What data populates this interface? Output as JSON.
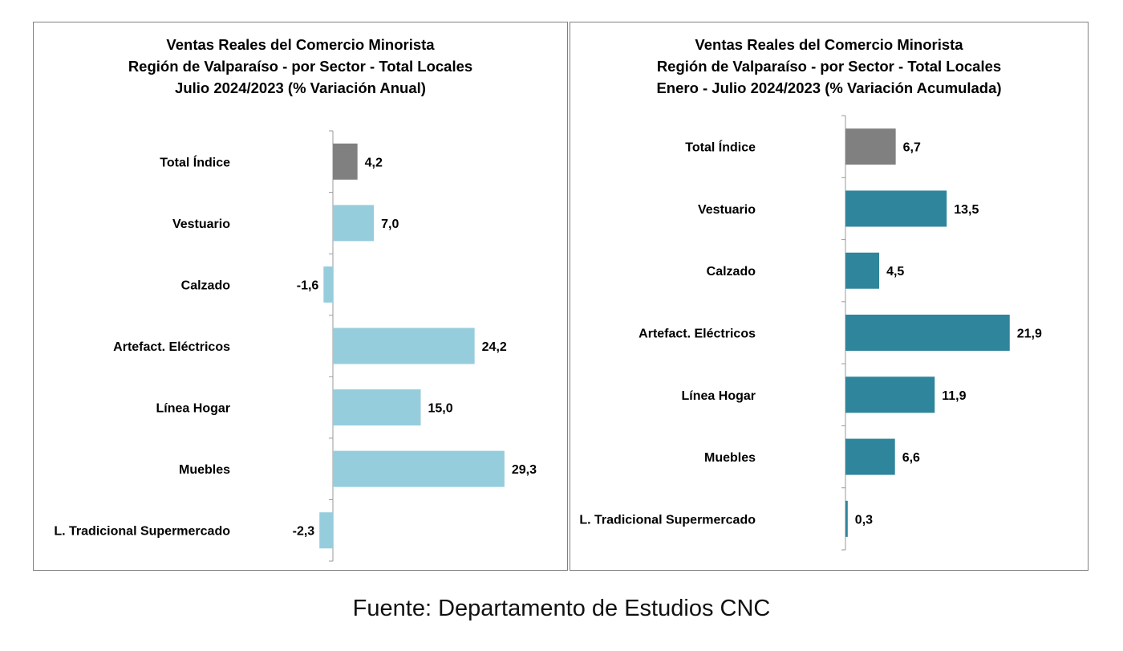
{
  "chart_data": [
    {
      "type": "bar",
      "orientation": "horizontal",
      "title_lines": [
        "Ventas Reales del Comercio Minorista",
        "Región de Valparaíso - por Sector - Total Locales",
        "Julio 2024/2023 (% Variación Anual)"
      ],
      "categories": [
        "Total Índice",
        "Vestuario",
        "Calzado",
        "Artefact. Eléctricos",
        "Línea Hogar",
        "Muebles",
        "L. Tradicional Supermercado"
      ],
      "values": [
        4.2,
        7.0,
        -1.6,
        24.2,
        15.0,
        29.3,
        -2.3
      ],
      "value_labels": [
        "4,2",
        "7,0",
        "-1,6",
        "24,2",
        "15,0",
        "29,3",
        "-2,3"
      ],
      "bar_colors": [
        "#808080",
        "#96cddd",
        "#96cddd",
        "#96cddd",
        "#96cddd",
        "#96cddd",
        "#96cddd"
      ],
      "xlim": [
        -3.5,
        35
      ],
      "grid": false,
      "legend": "none"
    },
    {
      "type": "bar",
      "orientation": "horizontal",
      "title_lines": [
        "Ventas Reales del Comercio Minorista",
        "Región de Valparaíso - por Sector  - Total Locales",
        "Enero - Julio 2024/2023 (% Variación Acumulada)"
      ],
      "categories": [
        "Total Índice",
        "Vestuario",
        "Calzado",
        "Artefact. Eléctricos",
        "Línea Hogar",
        "Muebles",
        "L. Tradicional Supermercado"
      ],
      "values": [
        6.7,
        13.5,
        4.5,
        21.9,
        11.9,
        6.6,
        0.3
      ],
      "value_labels": [
        "6,7",
        "13,5",
        "4,5",
        "21,9",
        "11,9",
        "6,6",
        "0,3"
      ],
      "bar_colors": [
        "#808080",
        "#2f859b",
        "#2f859b",
        "#2f859b",
        "#2f859b",
        "#2f859b",
        "#2f859b"
      ],
      "xlim": [
        0,
        27
      ],
      "grid": false,
      "legend": "none"
    }
  ],
  "footer": "Fuente: Departamento de Estudios CNC"
}
